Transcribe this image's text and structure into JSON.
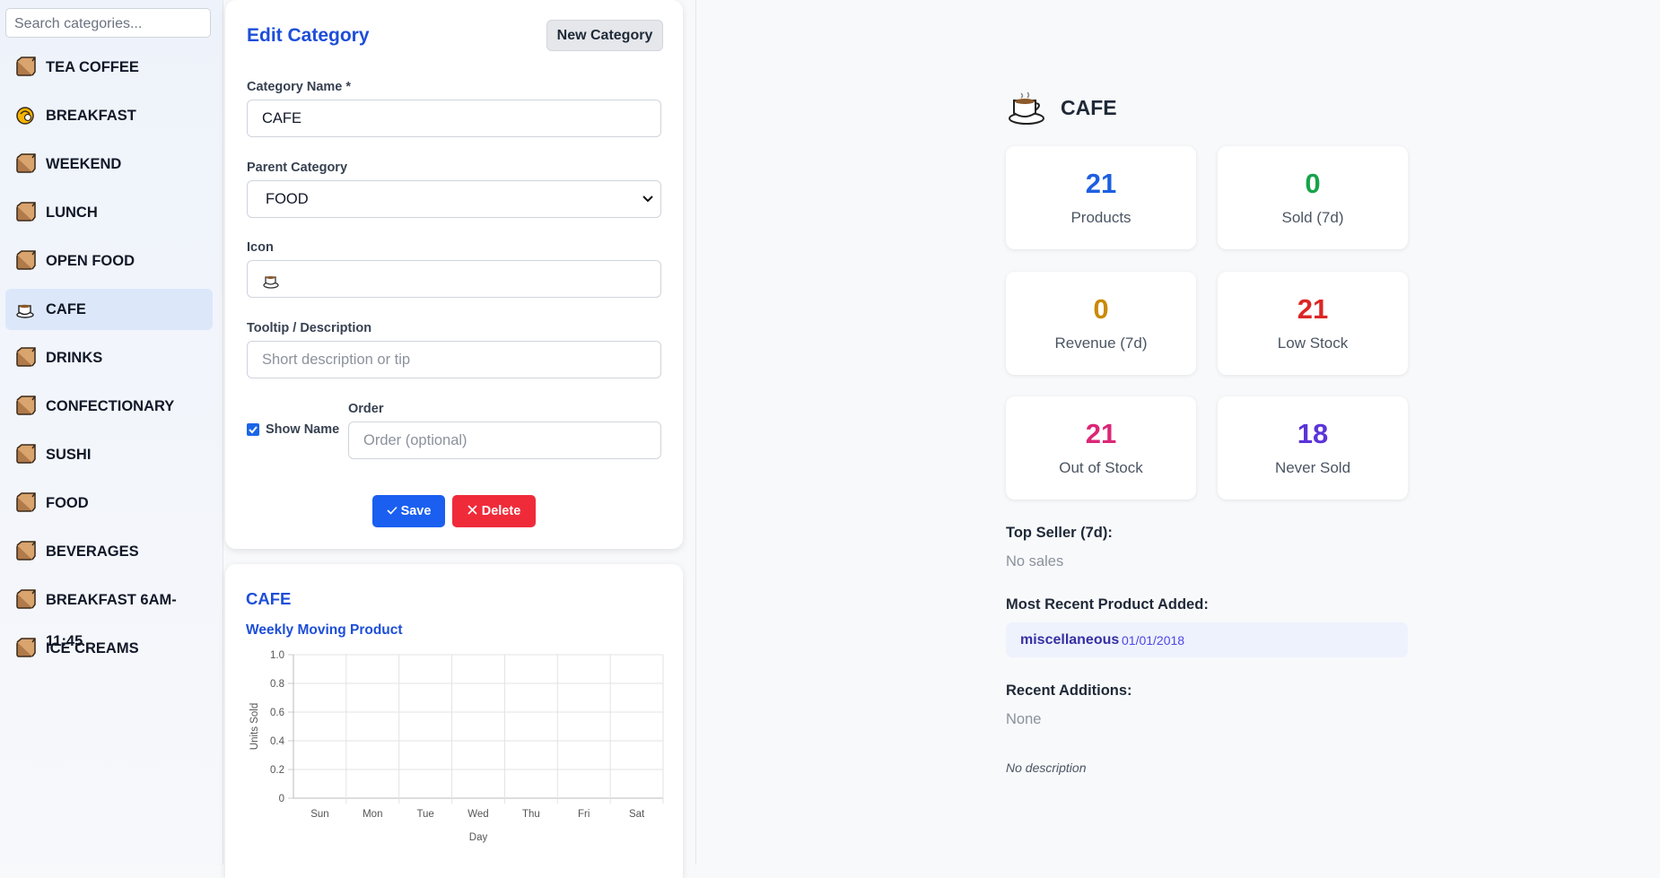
{
  "sidebar": {
    "search_placeholder": "Search categories...",
    "items": [
      "TEA COFFEE",
      "BREAKFAST",
      "WEEKEND",
      "LUNCH",
      "OPEN FOOD",
      "CAFE",
      "DRINKS",
      "CONFECTIONARY",
      "SUSHI",
      "FOOD",
      "BEVERAGES",
      "BREAKFAST 6AM-11:45",
      "ICE CREAMS"
    ]
  },
  "form": {
    "title": "Edit Category",
    "new_button": "New Category",
    "name_label": "Category Name *",
    "name_value": "CAFE",
    "parent_label": "Parent Category",
    "parent_value": "FOOD",
    "icon_label": "Icon",
    "tooltip_label": "Tooltip / Description",
    "tooltip_placeholder": "Short description or tip",
    "show_name_label": "Show Name",
    "order_label": "Order",
    "order_placeholder": "Order (optional)",
    "save_button": "Save",
    "delete_button": "Delete"
  },
  "chart_card": {
    "heading": "CAFE"
  },
  "chart_data": {
    "type": "line",
    "title": "Weekly Moving Product",
    "categories": [
      "Sun",
      "Mon",
      "Tue",
      "Wed",
      "Thu",
      "Fri",
      "Sat"
    ],
    "series": [],
    "xlabel": "Day",
    "ylabel": "Units Sold",
    "ylim": [
      0,
      1
    ],
    "yticks": [
      0,
      0.2,
      0.4,
      0.6,
      0.8,
      {
        "value": 1,
        "label": "1.0"
      }
    ],
    "grid": true
  },
  "summary": {
    "title": "CAFE",
    "stats": [
      {
        "value": 21,
        "label": "Products"
      },
      {
        "value": 0,
        "label": "Sold (7d)"
      },
      {
        "value": 0,
        "label": "Revenue (7d)"
      },
      {
        "value": 21,
        "label": "Low Stock"
      },
      {
        "value": 21,
        "label": "Out of Stock"
      },
      {
        "value": 18,
        "label": "Never Sold"
      }
    ],
    "top_seller_label": "Top Seller (7d):",
    "top_seller_value": "No sales",
    "recent_product_label": "Most Recent Product Added:",
    "recent_product_name": "miscellaneous",
    "recent_product_date": "01/01/2018",
    "recent_additions_label": "Recent Additions:",
    "recent_additions_value": "None",
    "description": "No description"
  }
}
